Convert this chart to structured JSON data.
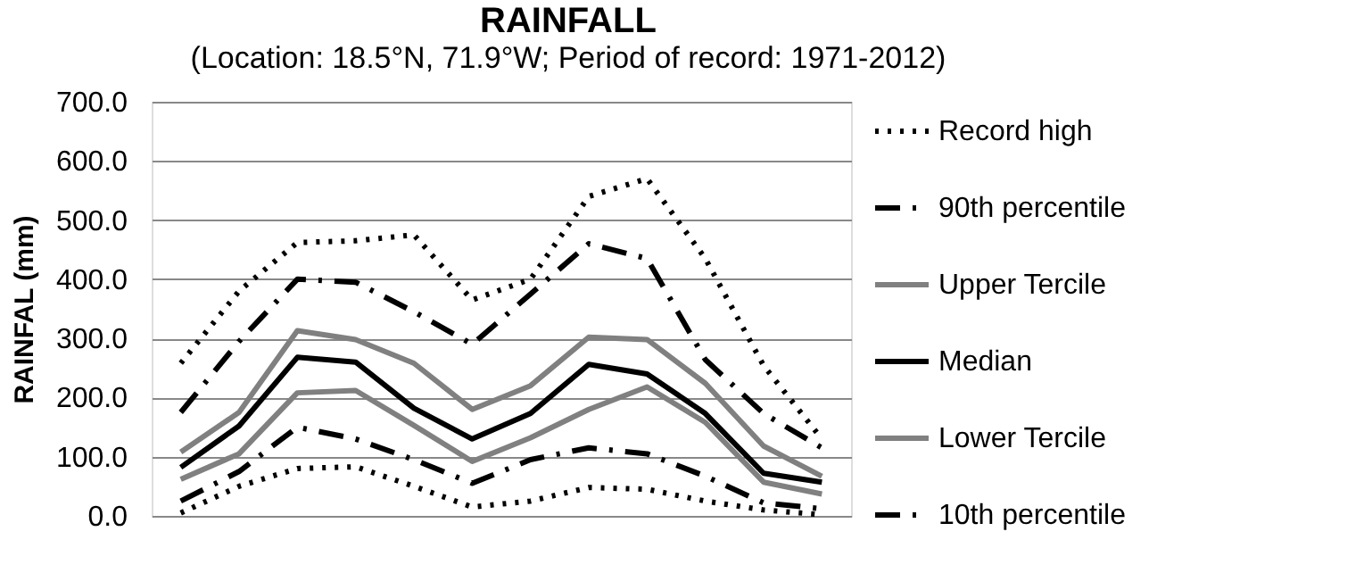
{
  "chart_data": {
    "type": "line",
    "title": "RAINFALL",
    "subtitle": "(Location: 18.5°N, 71.9°W; Period of record: 1971-2012)",
    "ylabel": "RAINFAL (mm)",
    "categories": [
      null,
      null,
      null,
      null,
      null,
      null,
      null,
      null,
      null,
      null,
      null,
      null
    ],
    "series": [
      {
        "name": "Record high",
        "color": "#000000",
        "line_style": "dotted",
        "values": [
          258,
          380,
          462,
          465,
          475,
          365,
          400,
          540,
          570,
          435,
          254,
          130
        ]
      },
      {
        "name": "90th percentile",
        "color": "#000000",
        "line_style": "dashed",
        "values": [
          175,
          295,
          400,
          395,
          345,
          290,
          375,
          460,
          435,
          264,
          173,
          115
        ]
      },
      {
        "name": "Upper Tercile",
        "color": "#808080",
        "line_style": "solid",
        "values": [
          108,
          175,
          313,
          298,
          258,
          180,
          220,
          302,
          298,
          224,
          118,
          67
        ]
      },
      {
        "name": "Median",
        "color": "#000000",
        "line_style": "solid",
        "values": [
          82,
          152,
          268,
          260,
          182,
          130,
          173,
          256,
          240,
          173,
          72,
          57
        ]
      },
      {
        "name": "Lower Tercile",
        "color": "#808080",
        "line_style": "solid",
        "values": [
          62,
          105,
          208,
          212,
          153,
          92,
          132,
          180,
          218,
          158,
          57,
          37
        ]
      },
      {
        "name": "10th percentile",
        "color": "#000000",
        "line_style": "dashed",
        "values": [
          25,
          75,
          150,
          130,
          95,
          55,
          95,
          115,
          105,
          67,
          22,
          12
        ]
      },
      {
        "color": "#000000",
        "line_style": "dotted",
        "values": [
          5,
          50,
          80,
          83,
          50,
          15,
          25,
          48,
          45,
          25,
          10,
          2
        ]
      }
    ],
    "ylim": [
      0,
      700
    ],
    "yticks": [
      {
        "value": 0,
        "label": "0.0"
      },
      {
        "value": 100,
        "label": "100.0"
      },
      {
        "value": 200,
        "label": "200.0"
      },
      {
        "value": 300,
        "label": "300.0"
      },
      {
        "value": 400,
        "label": "400.0"
      },
      {
        "value": 500,
        "label": "500.0"
      },
      {
        "value": 600,
        "label": "600.0"
      },
      {
        "value": 700,
        "label": "700.0"
      }
    ],
    "grid": "y",
    "legend": "right",
    "marker": "none",
    "tick_labels": "y"
  }
}
